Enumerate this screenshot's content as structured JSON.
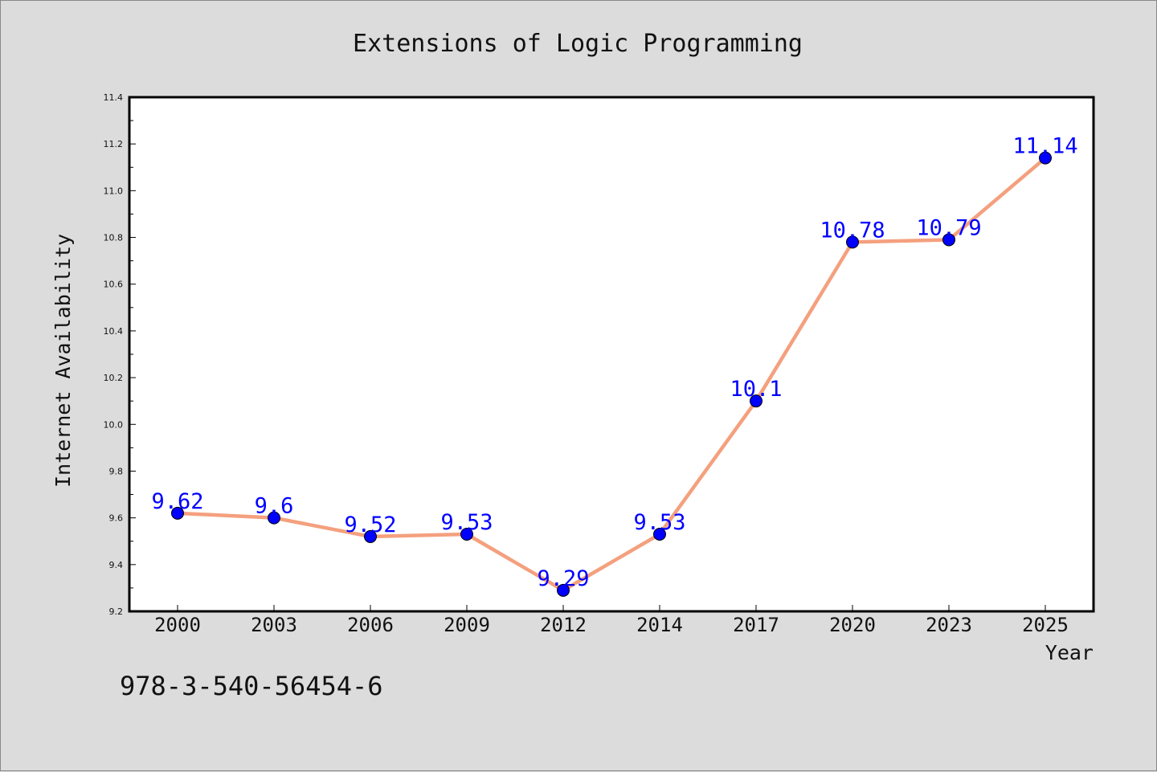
{
  "chart_data": {
    "type": "line",
    "title": "Extensions of Logic Programming",
    "xlabel": "Year",
    "ylabel": "Internet Availability",
    "categories": [
      "2000",
      "2003",
      "2006",
      "2009",
      "2012",
      "2014",
      "2017",
      "2020",
      "2023",
      "2025"
    ],
    "series": [
      {
        "values": [
          9.62,
          9.6,
          9.52,
          9.53,
          9.29,
          9.53,
          10.1,
          10.78,
          10.79,
          11.14
        ],
        "data_labels": [
          "9.62",
          "9.6",
          "9.52",
          "9.53",
          "9.29",
          "9.53",
          "10.1",
          "10.78",
          "10.79",
          "11.14"
        ]
      }
    ],
    "ylim": [
      9.2,
      11.4
    ],
    "yticks": [
      "9.2",
      "9.4",
      "9.6",
      "9.8",
      "10.0",
      "10.2",
      "10.4",
      "10.6",
      "10.8",
      "11.0",
      "11.2",
      "11.4"
    ],
    "grid": false,
    "colors": {
      "line": "#f4a07e",
      "marker": "#0000ff",
      "label": "#0000ff",
      "background": "#dcdcdc",
      "plot_background": "#ffffff"
    }
  },
  "footer": {
    "isbn": "978-3-540-56454-6"
  }
}
